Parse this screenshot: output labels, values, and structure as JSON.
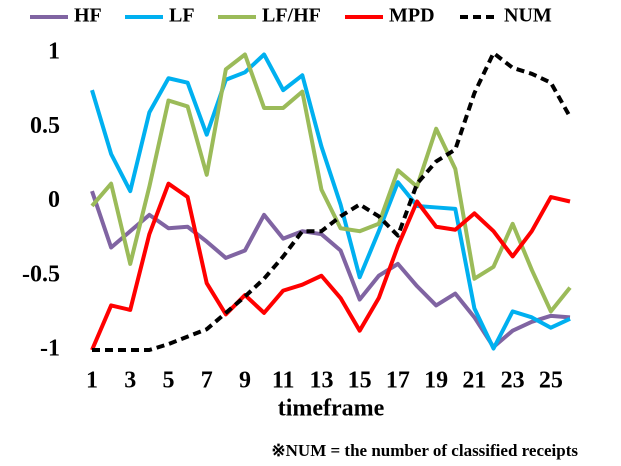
{
  "chart_data": {
    "type": "line",
    "xlabel": "timeframe",
    "note": "※NUM = the number of classified receipts",
    "x": [
      1,
      2,
      3,
      4,
      5,
      6,
      7,
      8,
      9,
      10,
      11,
      12,
      13,
      14,
      15,
      16,
      17,
      18,
      19,
      20,
      21,
      22,
      23,
      24,
      25,
      26
    ],
    "xlim": [
      1,
      26
    ],
    "xticks": [
      1,
      3,
      5,
      7,
      9,
      11,
      13,
      15,
      17,
      19,
      21,
      23,
      25
    ],
    "ylim": [
      -1,
      1
    ],
    "yticks": [
      1,
      0.5,
      0,
      -0.5,
      -1
    ],
    "grid": false,
    "legend": "top",
    "series": [
      {
        "name": "HF",
        "color": "#8064a2",
        "style": "solid",
        "values": [
          0.07,
          -0.31,
          -0.2,
          -0.09,
          -0.18,
          -0.17,
          -0.27,
          -0.38,
          -0.33,
          -0.09,
          -0.25,
          -0.2,
          -0.22,
          -0.33,
          -0.66,
          -0.5,
          -0.42,
          -0.57,
          -0.7,
          -0.62,
          -0.78,
          -0.98,
          -0.87,
          -0.81,
          -0.77,
          -0.78
        ]
      },
      {
        "name": "LF",
        "color": "#00b0f0",
        "style": "solid",
        "values": [
          0.75,
          0.32,
          0.07,
          0.6,
          0.83,
          0.8,
          0.45,
          0.82,
          0.87,
          0.99,
          0.75,
          0.85,
          0.37,
          -0.02,
          -0.51,
          -0.2,
          0.13,
          -0.03,
          -0.04,
          -0.05,
          -0.72,
          -0.99,
          -0.74,
          -0.78,
          -0.85,
          -0.79
        ]
      },
      {
        "name": "LF/HF",
        "color": "#9bbb59",
        "style": "solid",
        "values": [
          -0.03,
          0.12,
          -0.42,
          0.1,
          0.68,
          0.64,
          0.18,
          0.89,
          0.99,
          0.63,
          0.63,
          0.74,
          0.08,
          -0.18,
          -0.2,
          -0.15,
          0.21,
          0.1,
          0.49,
          0.22,
          -0.52,
          -0.44,
          -0.15,
          -0.46,
          -0.74,
          -0.58
        ]
      },
      {
        "name": "MPD",
        "color": "#ff0000",
        "style": "solid",
        "values": [
          -1,
          -0.7,
          -0.73,
          -0.22,
          0.12,
          0.03,
          -0.55,
          -0.76,
          -0.63,
          -0.75,
          -0.6,
          -0.56,
          -0.5,
          -0.65,
          -0.87,
          -0.65,
          -0.3,
          0.0,
          -0.17,
          -0.19,
          -0.08,
          -0.2,
          -0.37,
          -0.2,
          0.03,
          0.0
        ]
      },
      {
        "name": "NUM",
        "color": "#000000",
        "style": "dashed",
        "values": [
          -1,
          -1,
          -1,
          -1,
          -0.96,
          -0.91,
          -0.86,
          -0.75,
          -0.64,
          -0.52,
          -0.37,
          -0.2,
          -0.2,
          -0.1,
          -0.02,
          -0.1,
          -0.23,
          0.12,
          0.27,
          0.35,
          0.73,
          1.0,
          0.9,
          0.86,
          0.8,
          0.57
        ]
      }
    ]
  }
}
